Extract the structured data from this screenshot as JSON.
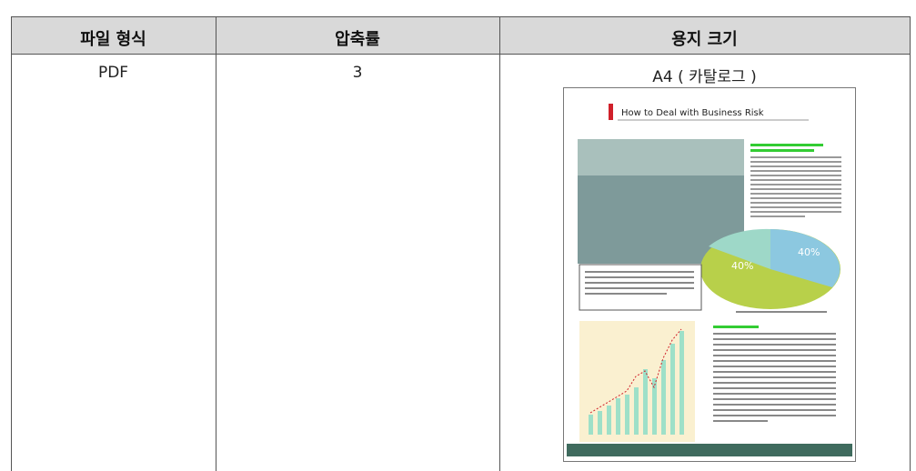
{
  "table": {
    "header": [
      "파일 형식",
      "압축률",
      "용지 크기"
    ],
    "rows": [
      [
        "PDF",
        3,
        "A4 ( 카탈로그 )"
      ]
    ]
  },
  "thumbnail": {
    "title": "How to Deal with Business Risk",
    "chart_labels": [
      "40%",
      "40%"
    ]
  }
}
